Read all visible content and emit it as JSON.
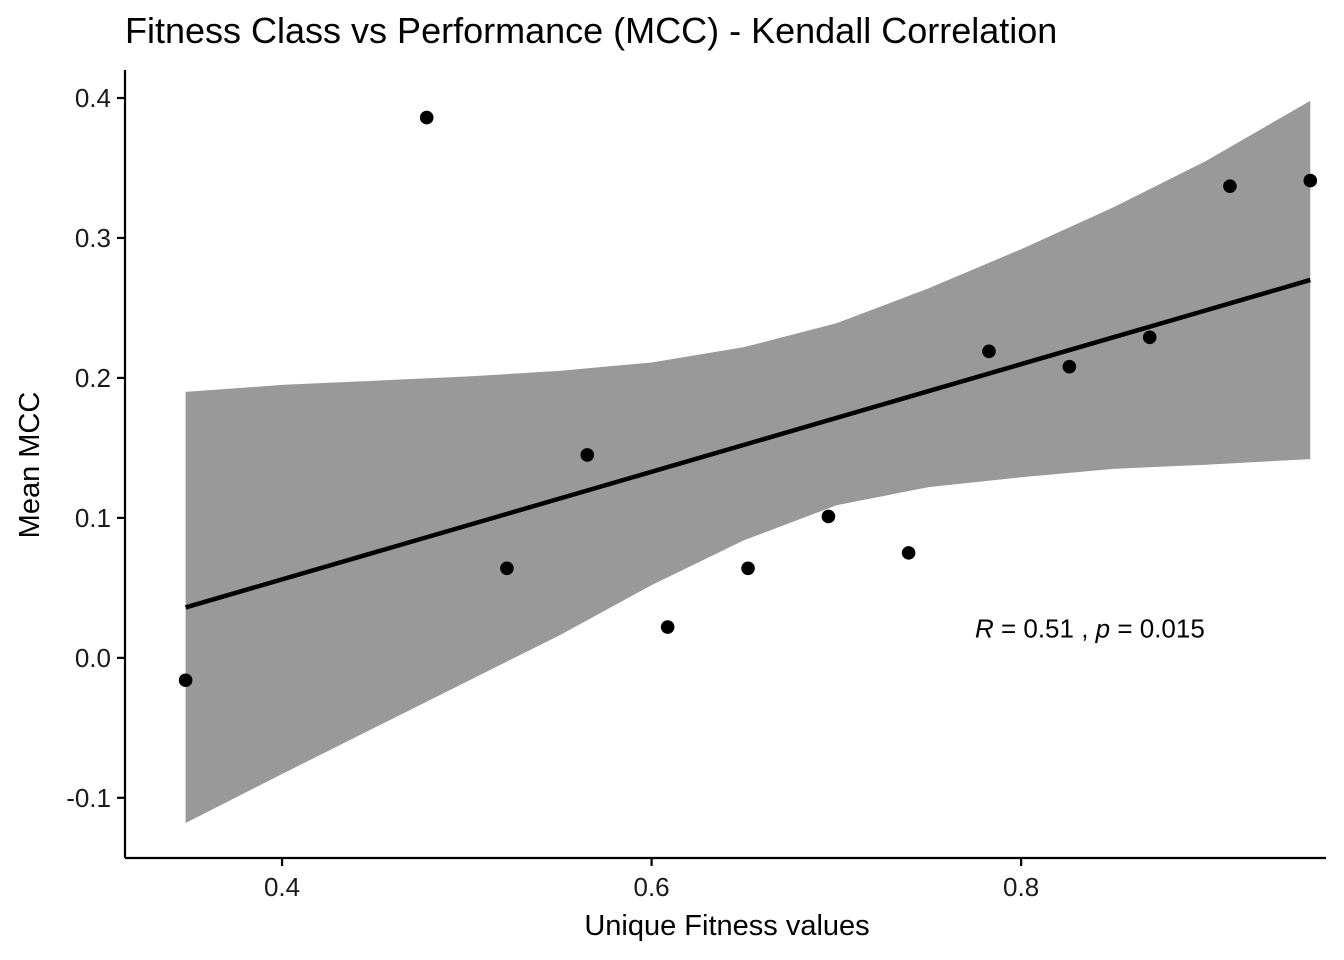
{
  "chart_data": {
    "type": "scatter",
    "title": "Fitness Class vs Performance (MCC) - Kendall Correlation",
    "xlabel": "Unique Fitness values",
    "ylabel": "Mean MCC",
    "xlim": [
      0.315,
      0.965
    ],
    "ylim": [
      -0.143,
      0.42
    ],
    "xticks": [
      0.4,
      0.6,
      0.8
    ],
    "xtick_labels": [
      "0.4",
      "0.6",
      "0.8"
    ],
    "yticks": [
      -0.1,
      0.0,
      0.1,
      0.2,
      0.3,
      0.4
    ],
    "ytick_labels": [
      "-0.1",
      "0.0",
      "0.1",
      "0.2",
      "0.3",
      "0.4"
    ],
    "grid": false,
    "points": [
      {
        "x": 0.3478,
        "y": -0.016
      },
      {
        "x": 0.4783,
        "y": 0.386
      },
      {
        "x": 0.5217,
        "y": 0.064
      },
      {
        "x": 0.5652,
        "y": 0.145
      },
      {
        "x": 0.6087,
        "y": 0.022
      },
      {
        "x": 0.6522,
        "y": 0.064
      },
      {
        "x": 0.6957,
        "y": 0.101
      },
      {
        "x": 0.7391,
        "y": 0.075
      },
      {
        "x": 0.7826,
        "y": 0.219
      },
      {
        "x": 0.8261,
        "y": 0.208
      },
      {
        "x": 0.8696,
        "y": 0.229
      },
      {
        "x": 0.913,
        "y": 0.337
      },
      {
        "x": 0.9565,
        "y": 0.341
      }
    ],
    "fit_line": {
      "x": [
        0.3478,
        0.9565
      ],
      "y": [
        0.036,
        0.27
      ]
    },
    "confidence_band": {
      "x": [
        0.3478,
        0.4,
        0.45,
        0.5,
        0.55,
        0.6,
        0.65,
        0.7,
        0.75,
        0.8,
        0.85,
        0.9,
        0.9565
      ],
      "lower": [
        -0.118,
        -0.083,
        -0.05,
        -0.017,
        0.016,
        0.052,
        0.084,
        0.109,
        0.122,
        0.129,
        0.135,
        0.138,
        0.142
      ],
      "upper": [
        0.19,
        0.195,
        0.198,
        0.201,
        0.205,
        0.211,
        0.222,
        0.239,
        0.264,
        0.292,
        0.322,
        0.355,
        0.398
      ]
    },
    "annotation": {
      "r_symbol": "R",
      "r_value": "0.51",
      "p_symbol": "p",
      "p_value": "0.015",
      "x": 0.775,
      "y": 0.021
    },
    "colors": {
      "points": "#000000",
      "line": "#000000",
      "band": "#999999",
      "axis": "#000000"
    }
  }
}
